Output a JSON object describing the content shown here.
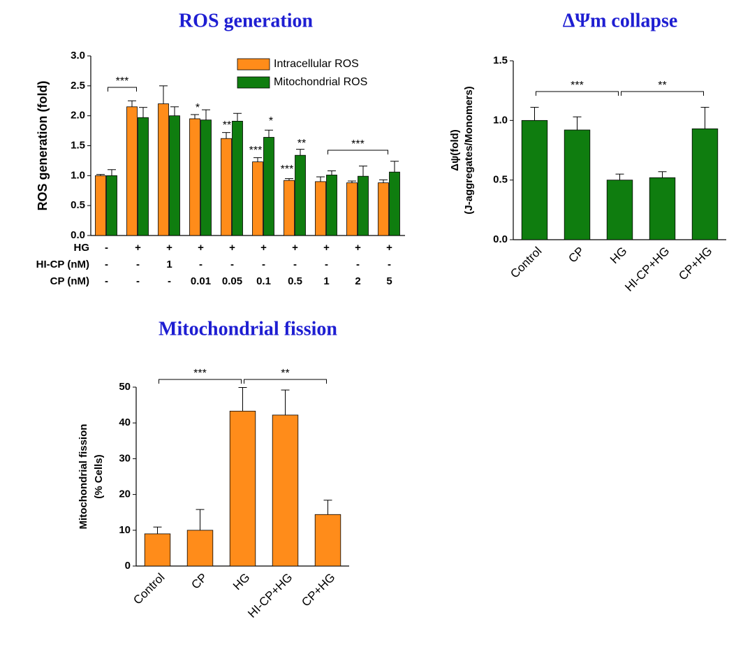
{
  "chart_data": [
    {
      "type": "grouped-bar",
      "title": "ROS generation",
      "ylabel": "ROS generation (fold)",
      "ylim": [
        0,
        3
      ],
      "yticks": [
        {
          "value": 0,
          "label": "0.0"
        },
        {
          "value": 0.5,
          "label": "0.5"
        },
        {
          "value": 1,
          "label": "1.0"
        },
        {
          "value": 1.5,
          "label": "1.5"
        },
        {
          "value": 2,
          "label": "2.0"
        },
        {
          "value": 2.5,
          "label": "2.5"
        },
        {
          "value": 3,
          "label": "3.0"
        }
      ],
      "conditions": [
        {
          "label": "HG",
          "values": [
            "-",
            "+",
            "+",
            "+",
            "+",
            "+",
            "+",
            "+",
            "+",
            "+"
          ]
        },
        {
          "label": "HI-CP (nM)",
          "values": [
            "-",
            "-",
            "1",
            "-",
            "-",
            "-",
            "-",
            "-",
            "-",
            "-"
          ]
        },
        {
          "label": "CP (nM)",
          "values": [
            "-",
            "-",
            "-",
            "0.01",
            "0.05",
            "0.1",
            "0.5",
            "1",
            "2",
            "5"
          ]
        }
      ],
      "series": [
        {
          "name": "Intracellular ROS",
          "color": "#ff8c1a",
          "values": [
            1.0,
            2.15,
            2.2,
            1.95,
            1.62,
            1.23,
            0.92,
            0.9,
            0.88,
            0.88
          ],
          "errors": [
            0.02,
            0.1,
            0.3,
            0.07,
            0.1,
            0.07,
            0.03,
            0.08,
            0.03,
            0.05
          ]
        },
        {
          "name": "Mitochondrial ROS",
          "color": "#0f7d0f",
          "values": [
            1.0,
            1.97,
            2.0,
            1.93,
            1.91,
            1.64,
            1.34,
            1.01,
            0.99,
            1.06
          ],
          "errors": [
            0.1,
            0.17,
            0.15,
            0.17,
            0.13,
            0.12,
            0.1,
            0.07,
            0.17,
            0.18
          ]
        }
      ],
      "annotations": [
        "***",
        "*",
        "**",
        "*",
        "***",
        "**",
        "***",
        "***"
      ]
    },
    {
      "type": "bar",
      "title": "ΔΨm collapse",
      "ylabel": [
        "Δψ(fold)",
        "(J-aggregates/Monomers)"
      ],
      "categories": [
        "Control",
        "CP",
        "HG",
        "HI-CP+HG",
        "CP+HG"
      ],
      "values": [
        1.0,
        0.92,
        0.5,
        0.52,
        0.93
      ],
      "errors": [
        0.11,
        0.11,
        0.05,
        0.05,
        0.18
      ],
      "color": "#0f7d0f",
      "ylim": [
        0,
        1.5
      ],
      "yticks": [
        {
          "value": 0,
          "label": "0.0"
        },
        {
          "value": 0.5,
          "label": "0.5"
        },
        {
          "value": 1,
          "label": "1.0"
        },
        {
          "value": 1.5,
          "label": "1.5"
        }
      ],
      "annotations": [
        "***",
        "**"
      ]
    },
    {
      "type": "bar",
      "title": "Mitochondrial fission",
      "ylabel": [
        "Mitochondrial fission",
        "(% Cells)"
      ],
      "categories": [
        "Control",
        "CP",
        "HG",
        "HI-CP+HG",
        "CP+HG"
      ],
      "values": [
        9,
        10,
        43.3,
        42.2,
        14.4
      ],
      "errors": [
        1.9,
        5.8,
        6.6,
        7,
        4
      ],
      "color": "#ff8c1a",
      "ylim": [
        0,
        50
      ],
      "yticks": [
        0,
        10,
        20,
        30,
        40,
        50
      ],
      "annotations": [
        "***",
        "**"
      ]
    }
  ]
}
